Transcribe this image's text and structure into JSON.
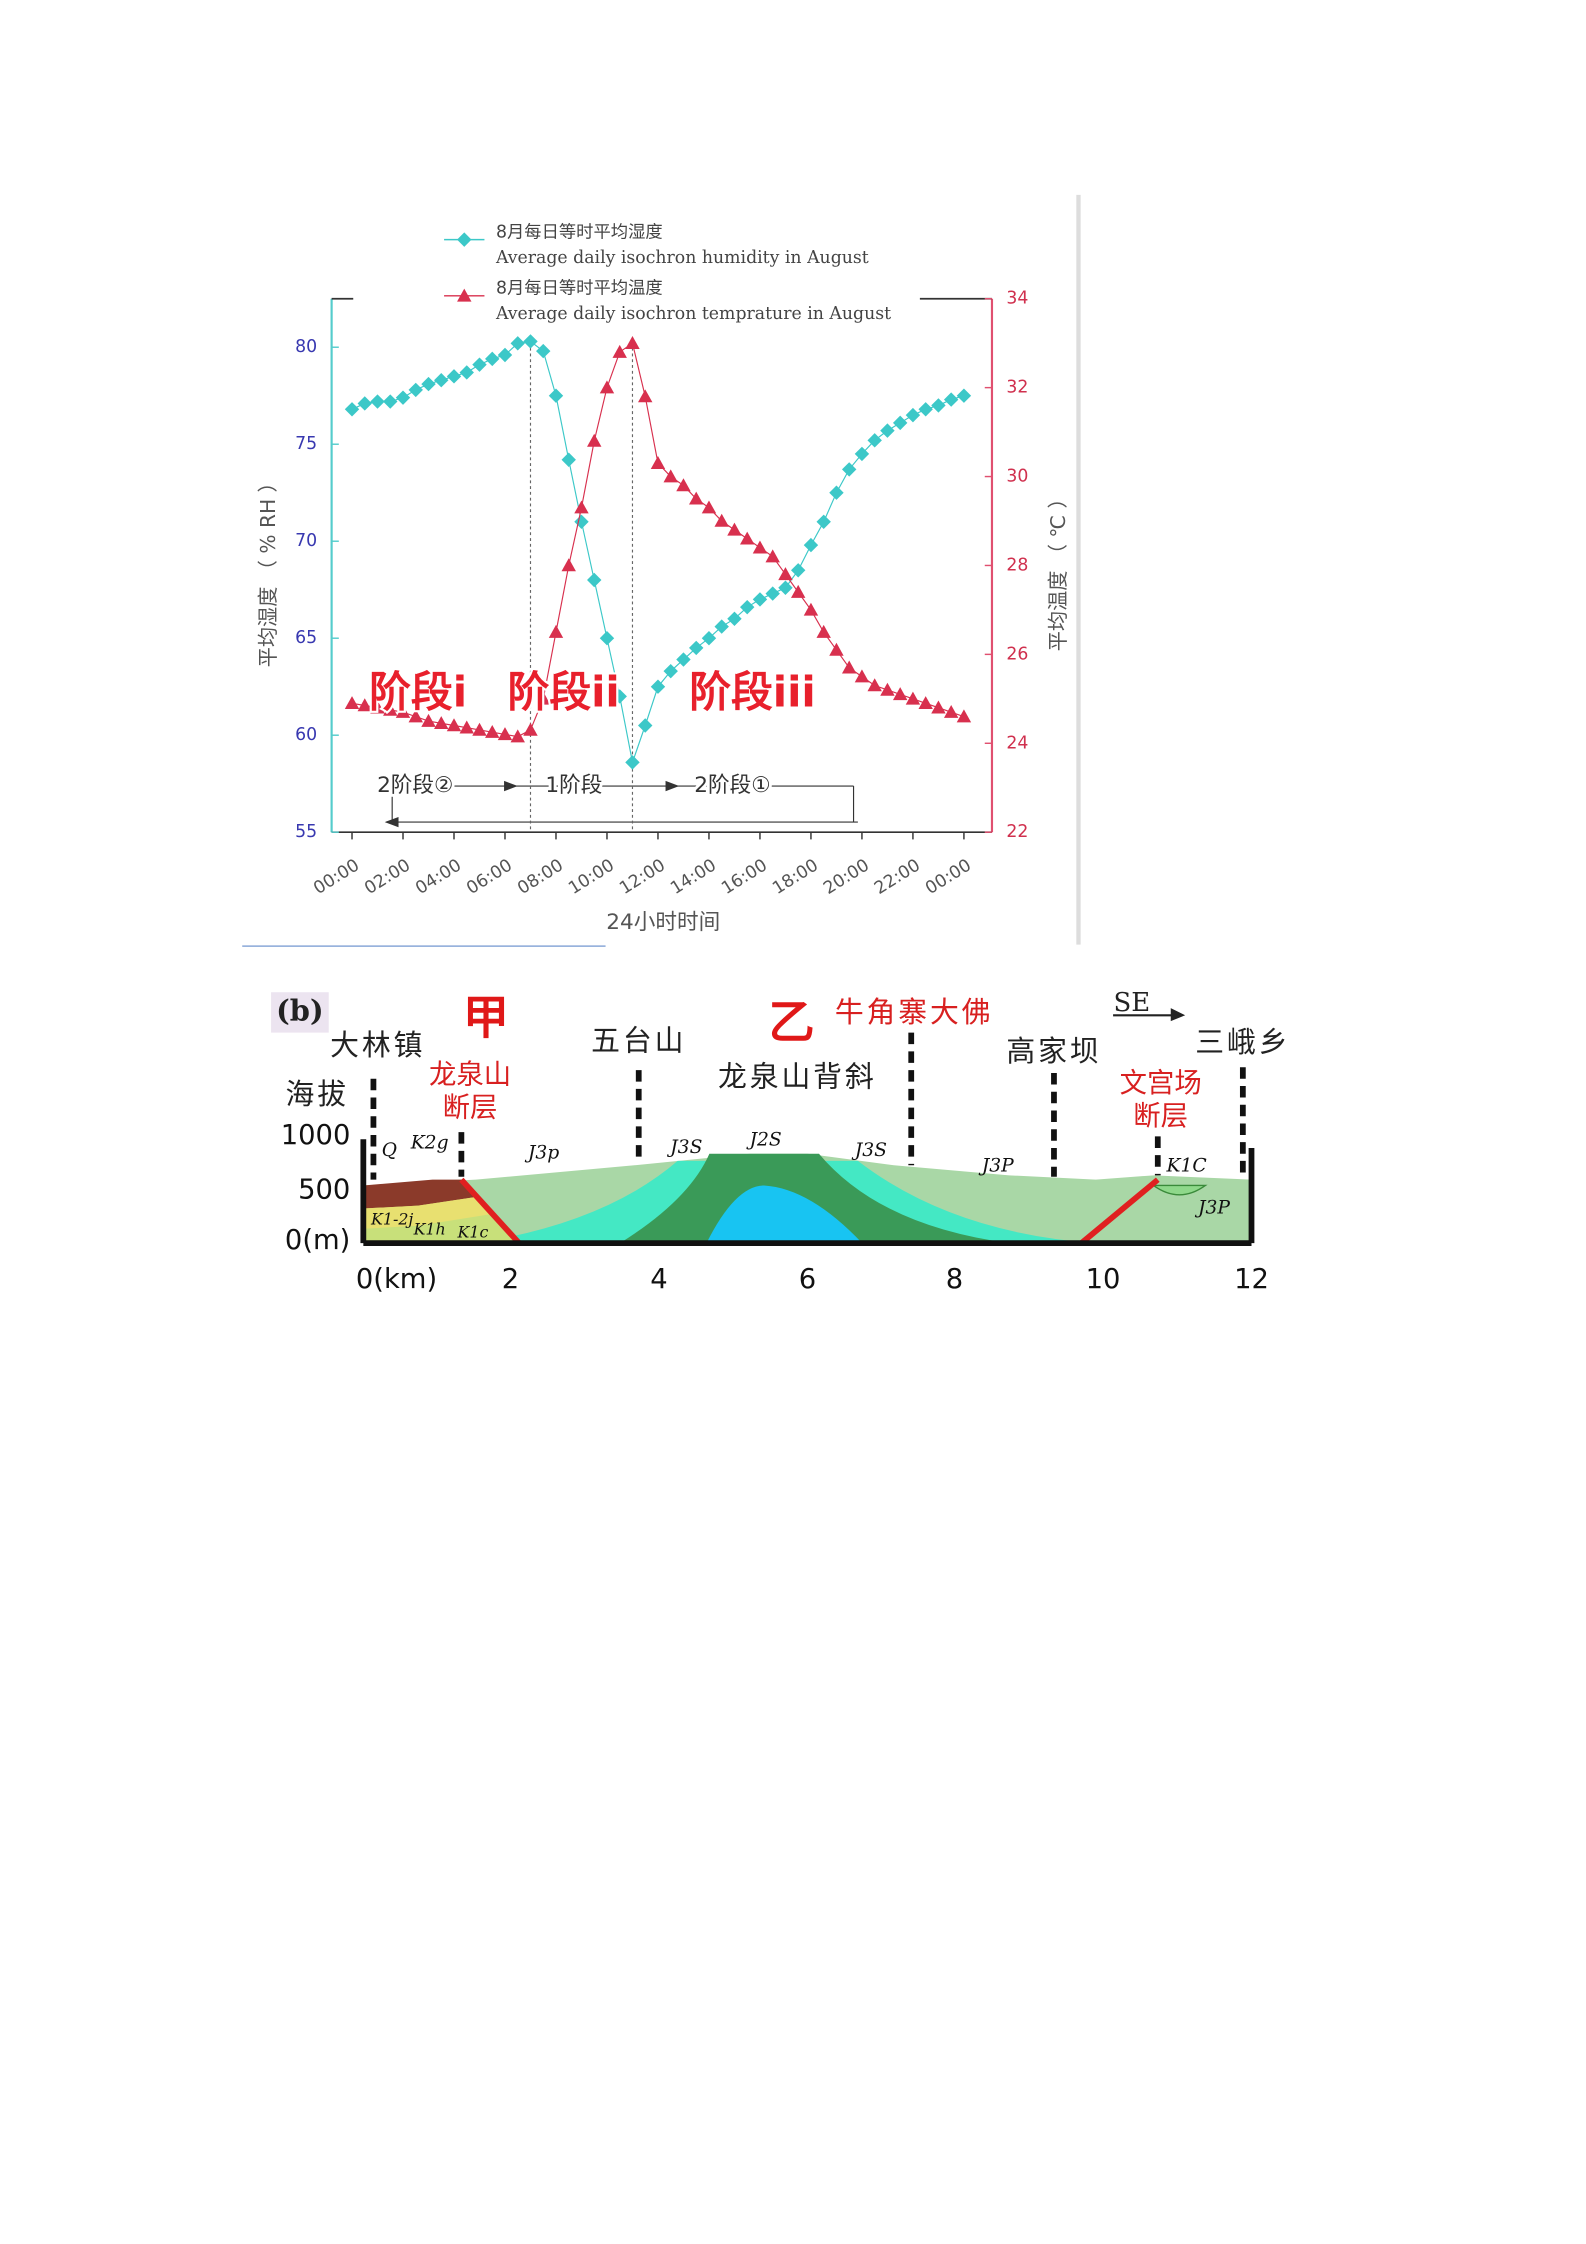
{
  "chart_data": {
    "type": "line",
    "legend": "top",
    "x": [
      0,
      0.5,
      1,
      1.5,
      2,
      2.5,
      3,
      3.5,
      4,
      4.5,
      5,
      5.5,
      6,
      6.5,
      7,
      7.5,
      8,
      8.5,
      9,
      9.5,
      10,
      10.5,
      11,
      11.5,
      12,
      12.5,
      13,
      13.5,
      14,
      14.5,
      15,
      15.5,
      16,
      16.5,
      17,
      17.5,
      18,
      18.5,
      19,
      19.5,
      20,
      20.5,
      21,
      21.5,
      22,
      22.5,
      23,
      23.5,
      24
    ],
    "xlim": [
      -0.8,
      25.1
    ],
    "xticks": [
      {
        "value": 0,
        "label": "00:00"
      },
      {
        "value": 2,
        "label": "02:00"
      },
      {
        "value": 4,
        "label": "04:00"
      },
      {
        "value": 6,
        "label": "06:00"
      },
      {
        "value": 8,
        "label": "08:00"
      },
      {
        "value": 10,
        "label": "10:00"
      },
      {
        "value": 12,
        "label": "12:00"
      },
      {
        "value": 14,
        "label": "14:00"
      },
      {
        "value": 16,
        "label": "16:00"
      },
      {
        "value": 18,
        "label": "18:00"
      },
      {
        "value": 20,
        "label": "20:00"
      },
      {
        "value": 22,
        "label": "22:00"
      },
      {
        "value": 24,
        "label": "00:00"
      }
    ],
    "ylim": [
      55,
      82.5
    ],
    "yticks": [
      55,
      60,
      65,
      70,
      75,
      80
    ],
    "y2lim": [
      22,
      34
    ],
    "y2ticks": [
      22,
      24,
      26,
      28,
      30,
      32,
      34
    ],
    "xlabel": "24小时时间",
    "ylabel": "平均湿度 （ % RH ）",
    "y2label": "平均温度 （ ℃ ）",
    "series": [
      {
        "name": "8月每日等时平均湿度",
        "name_en": "Average daily isochron humidity in August",
        "color": "#3cc8c8",
        "marker": "diamond",
        "values": [
          76.8,
          77.1,
          77.2,
          77.2,
          77.4,
          77.8,
          78.1,
          78.3,
          78.5,
          78.7,
          79.1,
          79.4,
          79.6,
          80.2,
          80.3,
          79.8,
          77.5,
          74.2,
          71,
          68,
          65,
          62,
          58.6,
          60.5,
          62.5,
          63.3,
          63.9,
          64.5,
          65,
          65.6,
          66,
          66.6,
          67,
          67.3,
          67.6,
          68.5,
          69.8,
          71,
          72.5,
          73.7,
          74.5,
          75.2,
          75.7,
          76.1,
          76.5,
          76.8,
          77,
          77.3,
          77.5
        ]
      },
      {
        "name": "8月每日等时平均温度",
        "name_en": "Average daily isochron temprature in August",
        "color": "#d8304e",
        "marker": "triangle",
        "axis": "y2",
        "values": [
          24.9,
          24.85,
          24.8,
          24.75,
          24.7,
          24.6,
          24.5,
          24.45,
          24.4,
          24.35,
          24.3,
          24.25,
          24.2,
          24.15,
          24.3,
          25,
          26.5,
          28,
          29.3,
          30.8,
          32,
          32.8,
          33,
          31.8,
          30.3,
          30,
          29.8,
          29.5,
          29.3,
          29,
          28.8,
          28.6,
          28.4,
          28.2,
          27.8,
          27.4,
          27,
          26.5,
          26.1,
          25.7,
          25.5,
          25.3,
          25.2,
          25.1,
          25,
          24.9,
          24.8,
          24.7,
          24.6
        ]
      }
    ],
    "annotations": [
      "阶段i",
      "阶段ii",
      "阶段iii"
    ],
    "stage_arrows": [
      "2阶段②",
      "1阶段",
      "2阶段①"
    ]
  },
  "diagram": {
    "panel_label": "(b)",
    "markers": [
      "甲",
      "乙"
    ],
    "places": [
      "牛角寨大佛",
      "大林镇",
      "五台山",
      "龙泉山背斜",
      "高家坝",
      "三峨乡"
    ],
    "direction": "SE",
    "elevation_label": "海拔",
    "faults": [
      [
        "龙泉山",
        "断层"
      ],
      [
        "文宫场",
        "断层"
      ]
    ],
    "elevation_ticks": [
      "1000",
      "500",
      "0(m)"
    ],
    "distance_ticks": [
      "0(km)",
      "2",
      "4",
      "6",
      "8",
      "10",
      "12"
    ],
    "formations": [
      "Q",
      "K2g",
      "J3p",
      "J3S",
      "J2S",
      "J3S",
      "J3P",
      "K1C",
      "J3P",
      "K1-2j",
      "K1h",
      "K1c"
    ]
  }
}
